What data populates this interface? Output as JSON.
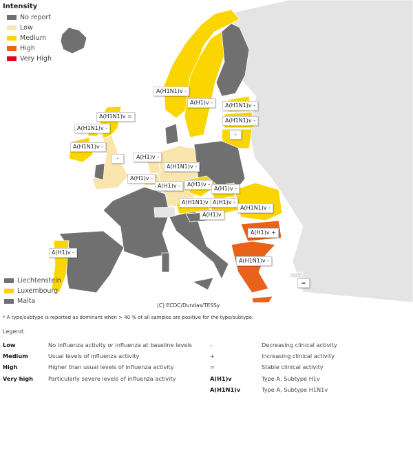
{
  "colors": {
    "No report": "#707070",
    "Low": "#fbe5ae",
    "Medium": "#fad500",
    "High": "#e8621a",
    "Very High": "#e3001b",
    "Not included": "#e4e4e4"
  },
  "intensity_legend": {
    "title": "Intensity",
    "items": [
      "No report",
      "Low",
      "Medium",
      "High",
      "Very High"
    ]
  },
  "small_countries": [
    {
      "name": "Liechtenstein",
      "intensity": "No report"
    },
    {
      "name": "Luxembourg",
      "intensity": "Medium"
    },
    {
      "name": "Malta",
      "intensity": "No report"
    }
  ],
  "regions": [
    {
      "intensity": "Not included"
    },
    {
      "intensity": "No report"
    },
    {
      "intensity": "Medium",
      "label": "A(H1N1)v -"
    },
    {
      "intensity": "Medium",
      "label": "A(H1)v -"
    },
    {
      "intensity": "No report"
    },
    {
      "intensity": "Medium",
      "label": "A(H1N1)v -"
    },
    {
      "intensity": "Medium",
      "label": "A(H1N1)v -"
    },
    {
      "intensity": "Medium",
      "label": "-"
    },
    {
      "intensity": "No report"
    },
    {
      "intensity": "Low",
      "label": "A(H1N1)v -"
    },
    {
      "intensity": "No report"
    },
    {
      "intensity": "Low",
      "label": "A(H1)v -"
    },
    {
      "intensity": "Low",
      "label": "A(H1)v -"
    },
    {
      "intensity": "Low",
      "label": "-"
    },
    {
      "intensity": "Medium",
      "label": "A(H1N1)v ="
    },
    {
      "intensity": "No report"
    },
    {
      "intensity": "Medium",
      "label": "A(H1N1)v -"
    },
    {
      "intensity": "Medium",
      "label": "A(H1N1)v -"
    },
    {
      "intensity": "No report"
    },
    {
      "intensity": "No report"
    },
    {
      "intensity": "Medium",
      "label": "A(H1)v -"
    },
    {
      "intensity": "Not included"
    },
    {
      "intensity": "No report"
    },
    {
      "intensity": "No report"
    },
    {
      "intensity": "No report"
    },
    {
      "intensity": "Medium",
      "label": "A(H1N1)v -"
    },
    {
      "intensity": "Medium",
      "label": "A(H1)v -"
    },
    {
      "intensity": "Medium",
      "label": "A(H1)v -"
    },
    {
      "intensity": "Medium",
      "label": "A(H1)v -"
    },
    {
      "intensity": "No report",
      "label": "A(H1)v"
    },
    {
      "intensity": "Medium",
      "label": "A(H1N1)v -"
    },
    {
      "intensity": "High",
      "label": "A(H1)v +"
    },
    {
      "intensity": "High",
      "label": "A(H1N1)v -"
    },
    {
      "intensity": "High"
    },
    {
      "intensity": "Not included",
      "label": "="
    },
    {
      "intensity": "Medium",
      "label": "A(H1)v -"
    }
  ],
  "copyright": "(C) ECDC/Dundas/TESSy",
  "footnote": "* A type/subtype is reported as dominant when > 40 % of all samples are positive for the type/subtype.",
  "legend": {
    "title": "Legend:",
    "intensity_rows": [
      {
        "term": "Low",
        "desc": "No influenza activity or influenza at baseline levels"
      },
      {
        "term": "Medium",
        "desc": "Usual levels of influenza activity"
      },
      {
        "term": "High",
        "desc": "Higher than usual levels of influenza activity"
      },
      {
        "term": "Very high",
        "desc": "Particularly severe levels of influenza activity"
      }
    ],
    "symbol_rows": [
      {
        "term": "-",
        "desc": "Decreasing clinical activity"
      },
      {
        "term": "+",
        "desc": "Increasing clinical activity"
      },
      {
        "term": "=",
        "desc": "Stable clinical activity"
      },
      {
        "term": "A(H1)v",
        "desc": "Type A, Subtype H1v"
      },
      {
        "term": "A(H1N1)v",
        "desc": "Type A, Subtype H1N1v"
      }
    ]
  }
}
